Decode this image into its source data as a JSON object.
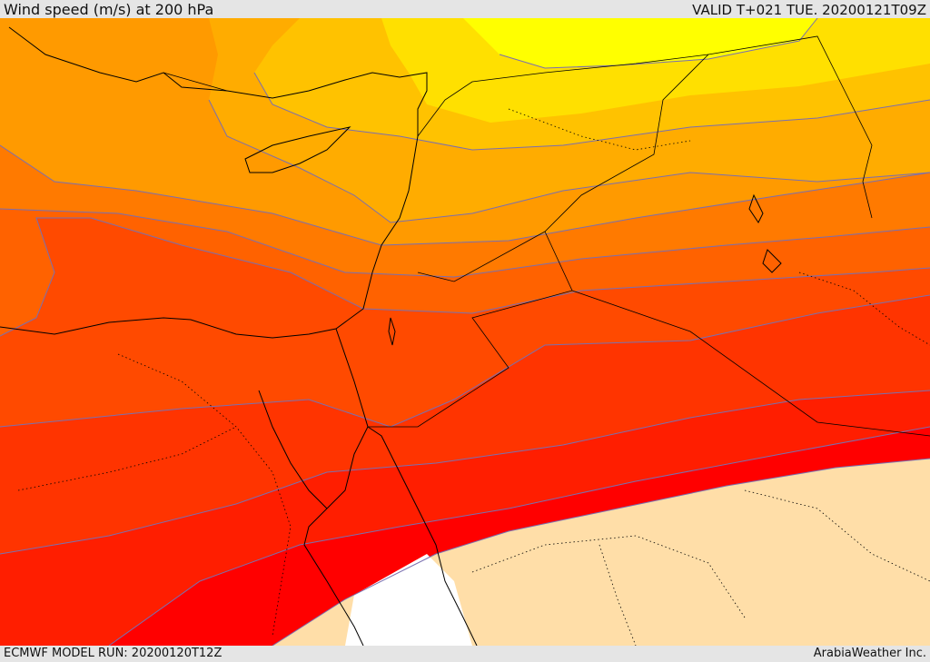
{
  "header": {
    "title": "Wind speed (m/s) at 200 hPa",
    "valid_time": "VALID T+021 TUE. 20200121T09Z"
  },
  "footer": {
    "model_run": "ECMWF MODEL RUN: 20200120T12Z",
    "credit": "ArabiaWeather Inc."
  },
  "map": {
    "field": "wind speed at 200 hPa",
    "palette": [
      "#ffff00",
      "#ffe000",
      "#ffc200",
      "#ffac00",
      "#ff9a00",
      "#ff7a00",
      "#ff6200",
      "#ff4a00",
      "#ff3400",
      "#ff1e00",
      "#ff0000",
      "#ffdea8",
      "#ffffff"
    ],
    "contour_color": "#7a6fb0",
    "coastline_color": "#000000"
  }
}
